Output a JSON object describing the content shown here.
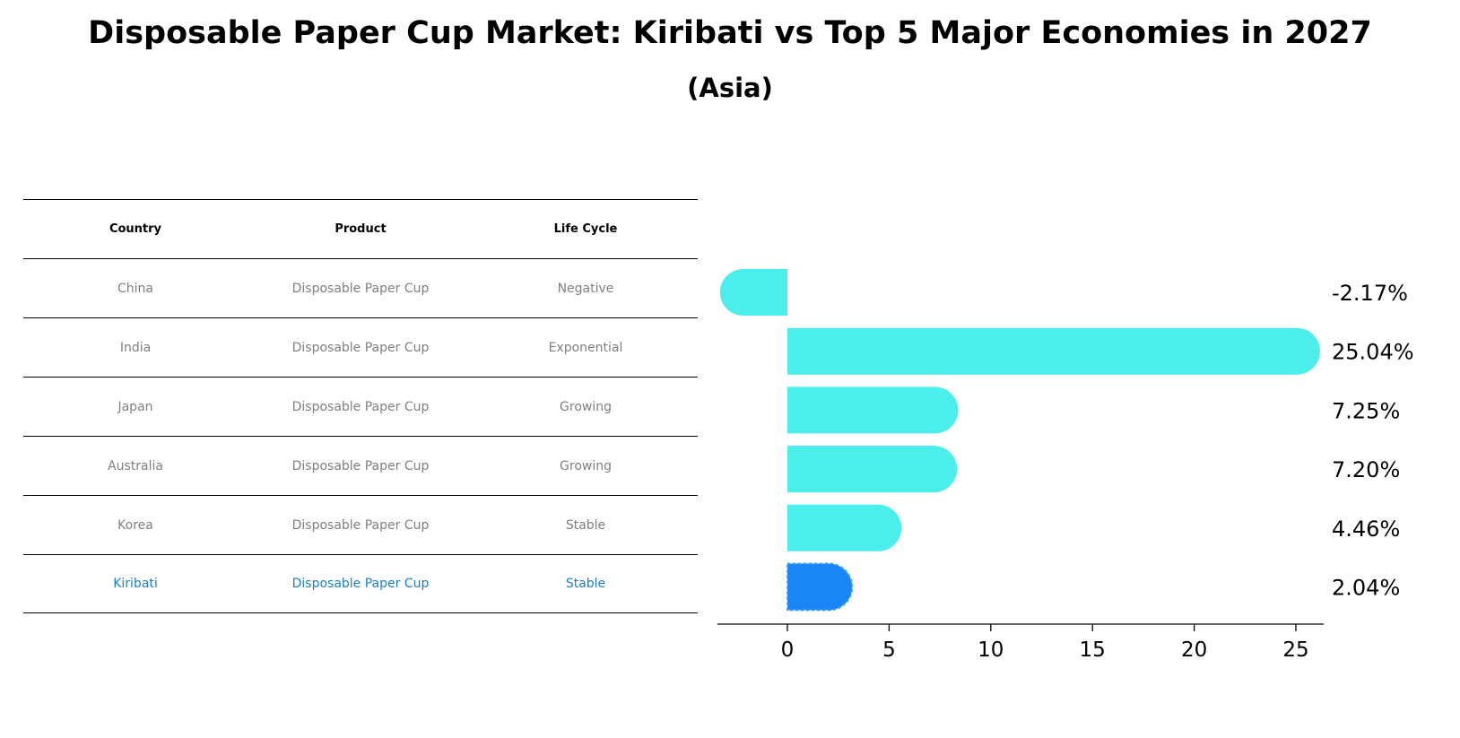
{
  "title": "Disposable Paper Cup Market: Kiribati vs Top 5 Major Economies in 2027",
  "subtitle": "(Asia)",
  "table": {
    "headers": [
      "Country",
      "Product",
      "Life Cycle"
    ],
    "rows": [
      [
        "China",
        "Disposable Paper Cup",
        "Negative"
      ],
      [
        "India",
        "Disposable Paper Cup",
        "Exponential"
      ],
      [
        "Japan",
        "Disposable Paper Cup",
        "Growing"
      ],
      [
        "Australia",
        "Disposable Paper Cup",
        "Growing"
      ],
      [
        "Korea",
        "Disposable Paper Cup",
        "Stable"
      ],
      [
        "Kiribati",
        "Disposable Paper Cup",
        "Stable"
      ]
    ],
    "highlight_row": 5
  },
  "colors": {
    "bar": "#4beeea",
    "highlight_bar": "#1a85f5",
    "highlight_text": "#1a7fd4",
    "muted_text": "#808080"
  },
  "chart_data": {
    "type": "bar",
    "orientation": "horizontal",
    "categories": [
      "China",
      "India",
      "Japan",
      "Australia",
      "Korea",
      "Kiribati"
    ],
    "values": [
      -2.17,
      25.04,
      7.25,
      7.2,
      4.46,
      2.04
    ],
    "value_labels": [
      "-2.17%",
      "25.04%",
      "7.25%",
      "7.20%",
      "4.46%",
      "2.04%"
    ],
    "highlight": "Kiribati",
    "xlim": [
      -3.5,
      26.4
    ],
    "xticks": [
      0,
      5,
      10,
      15,
      20,
      25
    ],
    "xlabel": "",
    "ylabel": "",
    "grid": false
  }
}
